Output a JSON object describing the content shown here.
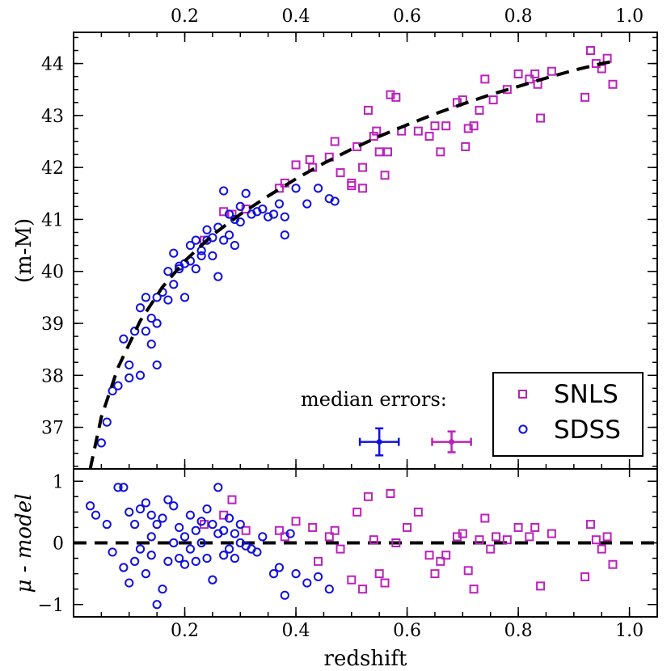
{
  "colors": {
    "snls": "#bb22bb",
    "sdss": "#1111dd",
    "model": "#000000"
  },
  "chart_data": [
    {
      "type": "scatter",
      "panel": "hubble-diagram",
      "xlabel": "",
      "ylabel": "(m-M)",
      "xlim": [
        0.0,
        1.05
      ],
      "ylim": [
        36.2,
        44.6
      ],
      "x_ticks": [
        0.2,
        0.4,
        0.6,
        0.8,
        1.0
      ],
      "x_tick_labels": [
        "0.2",
        "0.4",
        "0.6",
        "0.8",
        "1.0"
      ],
      "y_ticks": [
        37,
        38,
        39,
        40,
        41,
        42,
        43,
        44
      ],
      "y_tick_labels": [
        "37",
        "38",
        "39",
        "40",
        "41",
        "42",
        "43",
        "44"
      ],
      "model_curve": {
        "name": "model",
        "style": "dashed",
        "x": [
          0.03,
          0.05,
          0.08,
          0.12,
          0.16,
          0.2,
          0.25,
          0.3,
          0.35,
          0.4,
          0.45,
          0.5,
          0.55,
          0.6,
          0.65,
          0.7,
          0.75,
          0.8,
          0.85,
          0.9,
          0.95,
          0.975
        ],
        "y": [
          36.2,
          37.2,
          38.15,
          39.05,
          39.7,
          40.2,
          40.7,
          41.1,
          41.45,
          41.78,
          42.08,
          42.35,
          42.6,
          42.82,
          43.03,
          43.22,
          43.4,
          43.56,
          43.72,
          43.87,
          44.0,
          44.05
        ]
      },
      "series": [
        {
          "name": "SNLS",
          "marker": "square",
          "x": [
            0.235,
            0.27,
            0.285,
            0.31,
            0.37,
            0.38,
            0.4,
            0.425,
            0.43,
            0.46,
            0.47,
            0.48,
            0.5,
            0.5,
            0.51,
            0.52,
            0.52,
            0.53,
            0.54,
            0.545,
            0.55,
            0.56,
            0.565,
            0.57,
            0.58,
            0.59,
            0.62,
            0.64,
            0.65,
            0.66,
            0.67,
            0.69,
            0.7,
            0.705,
            0.71,
            0.72,
            0.73,
            0.74,
            0.755,
            0.78,
            0.8,
            0.82,
            0.83,
            0.835,
            0.84,
            0.86,
            0.92,
            0.93,
            0.94,
            0.95,
            0.96,
            0.97
          ],
          "y": [
            40.6,
            41.15,
            41.1,
            41.2,
            41.6,
            41.7,
            42.05,
            42.15,
            42.0,
            42.2,
            42.5,
            41.9,
            41.7,
            41.65,
            42.4,
            41.6,
            42.0,
            43.1,
            42.6,
            42.7,
            42.3,
            41.85,
            42.3,
            43.4,
            43.35,
            42.7,
            42.7,
            42.6,
            42.8,
            42.3,
            42.8,
            43.25,
            43.3,
            42.4,
            42.75,
            42.8,
            43.1,
            43.7,
            43.3,
            43.5,
            43.8,
            43.7,
            43.8,
            43.6,
            42.95,
            43.85,
            43.35,
            44.25,
            44.0,
            43.9,
            44.1,
            43.6
          ]
        },
        {
          "name": "SDSS",
          "marker": "circle",
          "x": [
            0.05,
            0.06,
            0.07,
            0.08,
            0.09,
            0.1,
            0.1,
            0.11,
            0.12,
            0.12,
            0.13,
            0.13,
            0.14,
            0.14,
            0.15,
            0.15,
            0.15,
            0.16,
            0.17,
            0.17,
            0.18,
            0.18,
            0.19,
            0.19,
            0.2,
            0.2,
            0.21,
            0.21,
            0.22,
            0.22,
            0.23,
            0.23,
            0.24,
            0.24,
            0.25,
            0.25,
            0.26,
            0.26,
            0.27,
            0.27,
            0.28,
            0.28,
            0.29,
            0.29,
            0.3,
            0.3,
            0.31,
            0.32,
            0.33,
            0.34,
            0.35,
            0.36,
            0.37,
            0.38,
            0.38,
            0.4,
            0.42,
            0.44,
            0.46,
            0.47
          ],
          "y": [
            36.7,
            37.1,
            37.7,
            37.8,
            38.7,
            38.2,
            37.95,
            38.85,
            38.0,
            39.3,
            38.85,
            39.5,
            38.6,
            39.1,
            38.2,
            39.5,
            39.0,
            39.6,
            39.45,
            40.0,
            40.35,
            39.75,
            40.05,
            40.1,
            40.15,
            39.5,
            40.2,
            40.5,
            40.05,
            40.6,
            40.3,
            40.4,
            40.8,
            40.6,
            40.65,
            40.3,
            40.85,
            39.9,
            41.55,
            40.6,
            40.7,
            41.1,
            41.0,
            40.5,
            40.95,
            41.25,
            41.5,
            41.1,
            41.15,
            41.2,
            41.05,
            41.1,
            41.3,
            41.05,
            40.7,
            41.6,
            41.3,
            41.6,
            41.4,
            41.35
          ]
        }
      ],
      "legend": {
        "position": "bottom-right",
        "entries": [
          "SNLS",
          "SDSS"
        ]
      },
      "annotation": {
        "text": "median errors:",
        "errorbars": [
          {
            "series": "SDSS",
            "x": 0.55,
            "y": 36.72,
            "xerr": 0.035,
            "yerr": 0.26
          },
          {
            "series": "SNLS",
            "x": 0.68,
            "y": 36.72,
            "xerr": 0.035,
            "yerr": 0.2
          }
        ]
      },
      "top_axis_tick_labels": true
    },
    {
      "type": "scatter",
      "panel": "residuals",
      "xlabel": "redshift",
      "ylabel": "μ - model",
      "xlim": [
        0.0,
        1.05
      ],
      "ylim": [
        -1.2,
        1.2
      ],
      "x_ticks": [
        0.2,
        0.4,
        0.6,
        0.8,
        1.0
      ],
      "x_tick_labels": [
        "0.2",
        "0.4",
        "0.6",
        "0.8",
        "1.0"
      ],
      "y_ticks": [
        -1,
        0,
        1
      ],
      "y_tick_labels": [
        "−1",
        "0",
        "1"
      ],
      "reference_line": {
        "y": 0,
        "style": "dashed"
      },
      "series": [
        {
          "name": "SNLS",
          "marker": "square",
          "x": [
            0.235,
            0.27,
            0.285,
            0.31,
            0.37,
            0.38,
            0.4,
            0.43,
            0.44,
            0.46,
            0.47,
            0.48,
            0.5,
            0.51,
            0.52,
            0.53,
            0.54,
            0.55,
            0.56,
            0.57,
            0.58,
            0.6,
            0.62,
            0.64,
            0.65,
            0.66,
            0.67,
            0.69,
            0.7,
            0.71,
            0.72,
            0.73,
            0.74,
            0.75,
            0.76,
            0.78,
            0.8,
            0.82,
            0.83,
            0.84,
            0.86,
            0.92,
            0.93,
            0.94,
            0.95,
            0.96,
            0.97
          ],
          "y": [
            0.3,
            0.45,
            0.7,
            0.2,
            0.2,
            0.1,
            0.35,
            0.25,
            -0.3,
            0.1,
            0.2,
            -0.1,
            -0.6,
            0.5,
            -0.75,
            0.75,
            0.05,
            -0.5,
            -0.65,
            0.8,
            0.0,
            0.25,
            0.5,
            -0.2,
            -0.5,
            -0.3,
            -0.2,
            0.1,
            0.15,
            -0.45,
            -0.75,
            0.05,
            0.4,
            -0.1,
            0.1,
            0.05,
            0.25,
            0.1,
            0.25,
            -0.7,
            0.15,
            -0.55,
            0.3,
            0.05,
            -0.1,
            0.1,
            -0.35
          ]
        },
        {
          "name": "SDSS",
          "marker": "circle",
          "x": [
            0.03,
            0.04,
            0.06,
            0.07,
            0.08,
            0.09,
            0.09,
            0.1,
            0.1,
            0.11,
            0.11,
            0.12,
            0.12,
            0.13,
            0.13,
            0.14,
            0.14,
            0.14,
            0.15,
            0.15,
            0.16,
            0.16,
            0.17,
            0.17,
            0.18,
            0.18,
            0.19,
            0.19,
            0.2,
            0.2,
            0.21,
            0.21,
            0.22,
            0.22,
            0.23,
            0.23,
            0.24,
            0.24,
            0.25,
            0.25,
            0.26,
            0.26,
            0.27,
            0.27,
            0.28,
            0.28,
            0.29,
            0.29,
            0.3,
            0.3,
            0.31,
            0.32,
            0.33,
            0.34,
            0.36,
            0.37,
            0.38,
            0.39,
            0.4,
            0.42,
            0.44,
            0.46
          ],
          "y": [
            0.6,
            0.45,
            0.3,
            -0.15,
            0.9,
            0.9,
            -0.4,
            0.5,
            -0.65,
            0.3,
            -0.3,
            0.55,
            -0.1,
            0.65,
            -0.5,
            0.45,
            -0.2,
            0.1,
            -1.0,
            0.3,
            -0.75,
            0.4,
            0.7,
            -0.3,
            0.6,
            0.0,
            0.25,
            -0.25,
            0.1,
            -0.35,
            0.45,
            -0.1,
            0.2,
            -0.3,
            0.35,
            0.0,
            0.55,
            -0.25,
            0.3,
            -0.6,
            0.9,
            0.15,
            0.2,
            -0.2,
            0.4,
            -0.1,
            0.15,
            -0.25,
            0.3,
            0.0,
            -0.05,
            -0.1,
            -0.15,
            0.1,
            -0.5,
            -0.4,
            -0.85,
            0.15,
            -0.5,
            -0.65,
            -0.55,
            -0.75
          ]
        }
      ]
    }
  ]
}
